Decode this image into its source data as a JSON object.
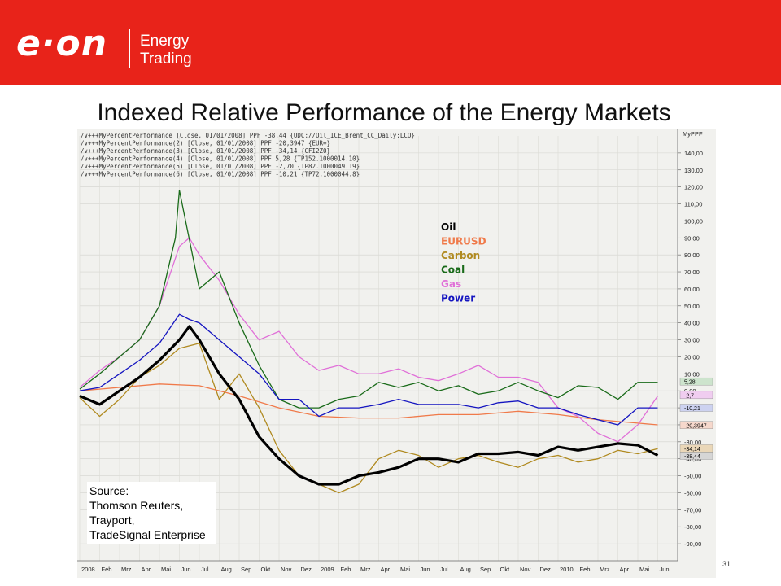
{
  "header": {
    "logo_text": "e·on",
    "brand_line1": "Energy",
    "brand_line2": "Trading",
    "background": "#e8231a"
  },
  "title": "Indexed Relative Performance of the Energy Markets",
  "source": {
    "line1": "Source:",
    "line2": "Thomson Reuters,",
    "line3": "Trayport,",
    "line4": "TradeSignal Enterprise"
  },
  "page_number": "31",
  "chart_data": {
    "type": "line",
    "indicator_label": "MyPPF",
    "legend_header": [
      "MyPercentPerformance [Close, 01/01/2008] PPF -38,44 {UDC://Oil_ICE_Brent_CC_Daily:LCO}",
      "MyPercentPerformance(2) [Close, 01/01/2008] PPF -20,3947 {EUR=}",
      "MyPercentPerformance(3) [Close, 01/01/2008] PPF -34,14 {CFI2Z0}",
      "MyPercentPerformance(4) [Close, 01/01/2008] PPF 5,28 {TP152.1000014.10}",
      "MyPercentPerformance(5) [Close, 01/01/2008] PPF -2,70 {TP82.1000049.19}",
      "MyPercentPerformance(6) [Close, 01/01/2008] PPF -10,21 {TP72.1000044.8}"
    ],
    "ylim": [
      -100,
      150
    ],
    "yticks": [
      "140,00",
      "130,00",
      "120,00",
      "110,00",
      "100,00",
      "90,00",
      "80,00",
      "70,00",
      "60,00",
      "50,00",
      "40,00",
      "30,00",
      "20,00",
      "10,00",
      "0,00",
      "-10,00",
      "-20,00",
      "-30,00",
      "-40,00",
      "-50,00",
      "-60,00",
      "-70,00",
      "-80,00",
      "-90,00"
    ],
    "xlim": [
      0,
      30
    ],
    "xticks": [
      "2008",
      "Feb",
      "Mrz",
      "Apr",
      "Mai",
      "Jun",
      "Jul",
      "Aug",
      "Sep",
      "Okt",
      "Nov",
      "Dez",
      "2009",
      "Feb",
      "Mrz",
      "Apr",
      "Mai",
      "Jun",
      "Jul",
      "Aug",
      "Sep",
      "Okt",
      "Nov",
      "Dez",
      "2010",
      "Feb",
      "Mrz",
      "Apr",
      "Mai",
      "Jun"
    ],
    "end_labels": [
      {
        "text": "5,28",
        "value": 5.28,
        "color": "#cde4cd"
      },
      {
        "text": "-2,7",
        "value": -2.7,
        "color": "#f0cdf0"
      },
      {
        "text": "-10,21",
        "value": -10.21,
        "color": "#cdd2f0"
      },
      {
        "text": "-20,3947",
        "value": -20.3947,
        "color": "#f6d8cc"
      },
      {
        "text": "-34,14",
        "value": -34.14,
        "color": "#ead7b8"
      },
      {
        "text": "-38,44",
        "value": -38.44,
        "color": "#d6d6d6"
      }
    ],
    "series": [
      {
        "name": "Oil",
        "color": "#000000",
        "x": [
          0,
          1,
          2,
          3,
          4,
          5,
          5.5,
          6,
          7,
          8,
          9,
          10,
          11,
          12,
          13,
          14,
          15,
          16,
          17,
          18,
          19,
          20,
          21,
          22,
          23,
          24,
          25,
          26,
          27,
          28,
          29
        ],
        "y": [
          -3,
          -8,
          0,
          8,
          18,
          30,
          38,
          30,
          10,
          -5,
          -27,
          -40,
          -50,
          -55,
          -55,
          -50,
          -48,
          -45,
          -40,
          -40,
          -42,
          -37,
          -37,
          -36,
          -38,
          -33,
          -35,
          -33,
          -31,
          -32,
          -38
        ]
      },
      {
        "name": "EURUSD",
        "color": "#f07a4a",
        "x": [
          0,
          2,
          4,
          6,
          8,
          10,
          12,
          14,
          16,
          18,
          20,
          22,
          24,
          26,
          28,
          29
        ],
        "y": [
          0,
          2,
          4,
          3,
          -3,
          -10,
          -15,
          -16,
          -16,
          -14,
          -14,
          -12,
          -14,
          -17,
          -19,
          -20
        ]
      },
      {
        "name": "Carbon",
        "color": "#b08a20",
        "x": [
          0,
          1,
          2,
          3,
          4,
          5,
          6,
          7,
          8,
          9,
          10,
          11,
          12,
          13,
          14,
          15,
          16,
          17,
          18,
          19,
          20,
          21,
          22,
          23,
          24,
          25,
          26,
          27,
          28,
          29
        ],
        "y": [
          -4,
          -15,
          -5,
          8,
          15,
          25,
          28,
          -5,
          10,
          -10,
          -35,
          -50,
          -55,
          -60,
          -55,
          -40,
          -35,
          -38,
          -45,
          -40,
          -38,
          -42,
          -45,
          -40,
          -38,
          -42,
          -40,
          -35,
          -37,
          -34
        ]
      },
      {
        "name": "Coal",
        "color": "#1a6b1a",
        "x": [
          0,
          1,
          2,
          3,
          4,
          4.8,
          5,
          6,
          7,
          8,
          9,
          10,
          11,
          12,
          13,
          14,
          15,
          16,
          17,
          18,
          19,
          20,
          21,
          22,
          23,
          24,
          25,
          26,
          27,
          28,
          29
        ],
        "y": [
          1,
          10,
          20,
          30,
          50,
          90,
          118,
          60,
          70,
          40,
          15,
          -5,
          -10,
          -10,
          -5,
          -3,
          5,
          2,
          5,
          0,
          3,
          -2,
          0,
          5,
          0,
          -4,
          3,
          2,
          -5,
          5,
          5
        ]
      },
      {
        "name": "Gas",
        "color": "#e070d8",
        "x": [
          0,
          1,
          2,
          3,
          4,
          5,
          5.5,
          6,
          7,
          8,
          9,
          10,
          11,
          12,
          13,
          14,
          15,
          16,
          17,
          18,
          19,
          20,
          21,
          22,
          23,
          24,
          25,
          26,
          27,
          28,
          29
        ],
        "y": [
          2,
          12,
          20,
          30,
          50,
          85,
          90,
          80,
          65,
          45,
          30,
          35,
          20,
          12,
          15,
          10,
          10,
          13,
          8,
          6,
          10,
          15,
          8,
          8,
          5,
          -10,
          -15,
          -25,
          -30,
          -20,
          -3
        ]
      },
      {
        "name": "Power",
        "color": "#1515c0",
        "x": [
          0,
          1,
          2,
          3,
          4,
          5,
          5.5,
          6,
          7,
          8,
          9,
          10,
          11,
          12,
          13,
          14,
          15,
          16,
          17,
          18,
          19,
          20,
          21,
          22,
          23,
          24,
          25,
          26,
          27,
          28,
          29
        ],
        "y": [
          0,
          2,
          10,
          18,
          28,
          45,
          42,
          40,
          30,
          20,
          10,
          -5,
          -5,
          -15,
          -10,
          -10,
          -8,
          -5,
          -8,
          -8,
          -8,
          -10,
          -7,
          -6,
          -10,
          -10,
          -14,
          -17,
          -20,
          -10,
          -10
        ]
      }
    ]
  }
}
